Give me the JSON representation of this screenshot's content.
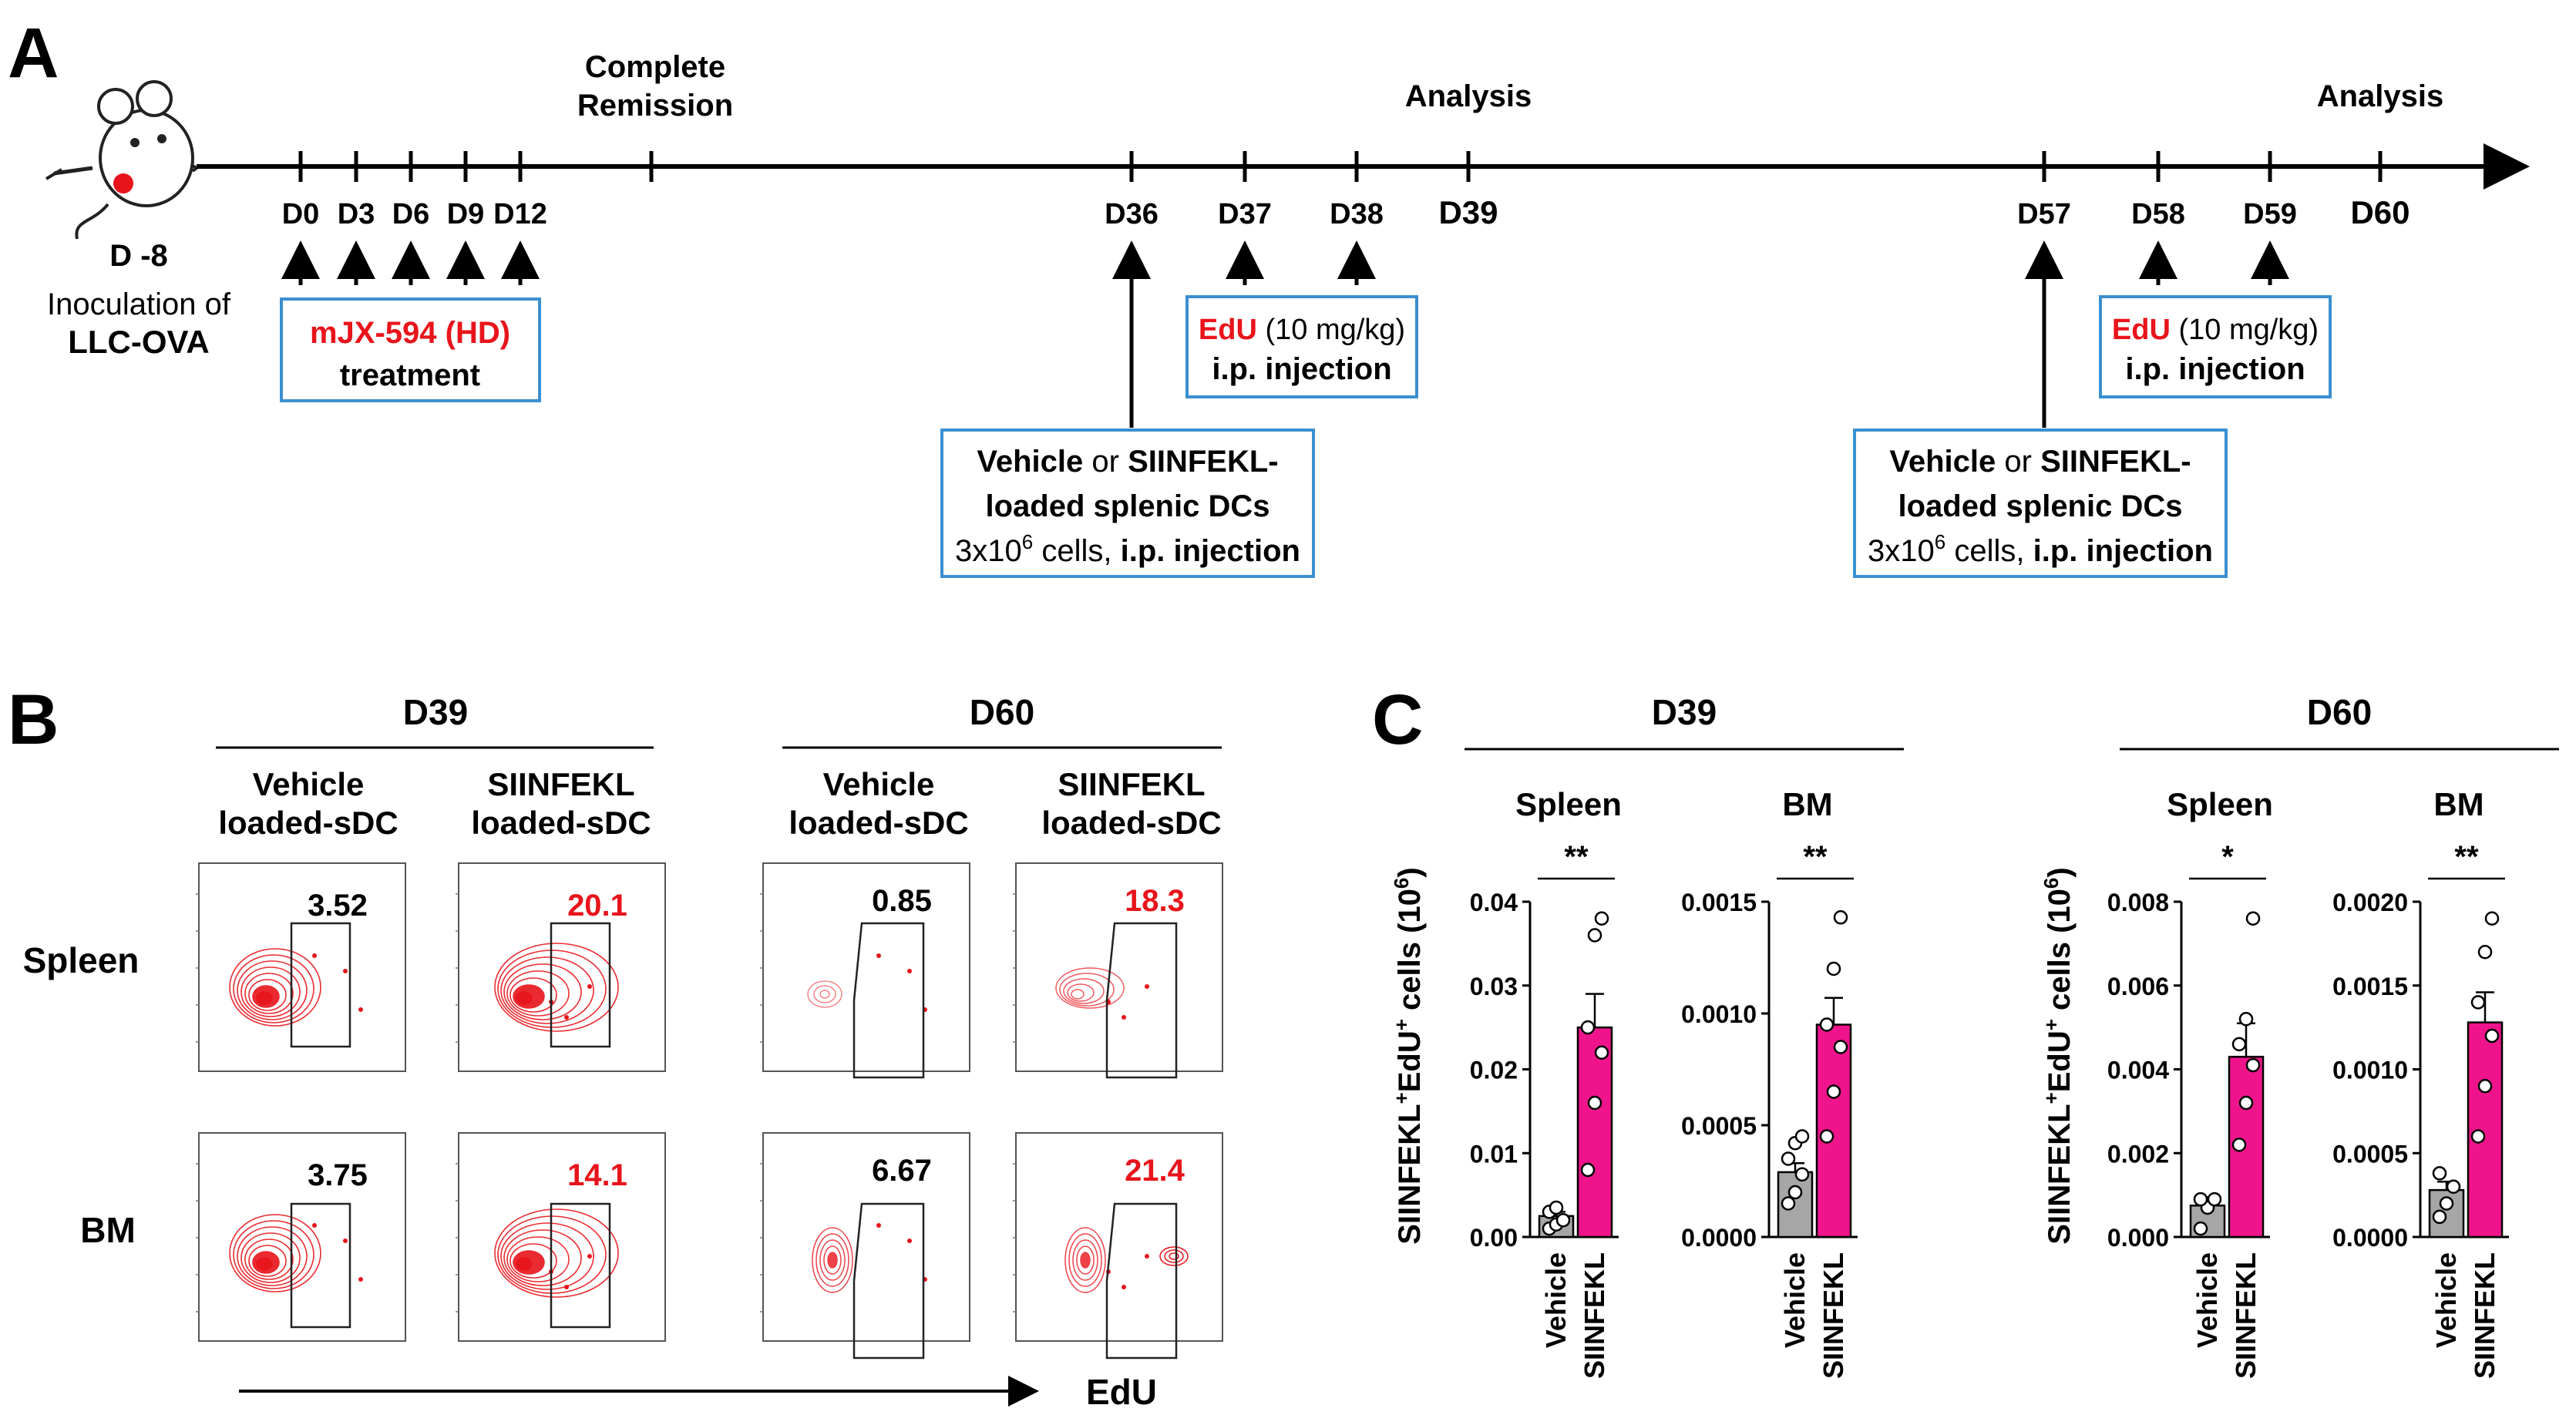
{
  "panel_labels": {
    "a": "A",
    "b": "B",
    "c": "C"
  },
  "timeline": {
    "day_minus8": "D -8",
    "inoculation_line1": "Inoculation of",
    "inoculation_line2": "LLC-OVA",
    "days": [
      "D0",
      "D3",
      "D6",
      "D9",
      "D12",
      "D36",
      "D37",
      "D38",
      "D39",
      "D57",
      "D58",
      "D59",
      "D60"
    ],
    "complete_remission_line1": "Complete",
    "complete_remission_line2": "Remission",
    "analysis_label": "Analysis",
    "treatment_box": {
      "drug": "mJX-594 (HD)",
      "line2": "treatment"
    },
    "edu_box": {
      "edu": "EdU",
      "dose": " (10 mg/kg)",
      "line2": "i.p. injection"
    },
    "dc_box": {
      "vehicle": "Vehicle",
      "or": " or ",
      "siinfekl": "SIINFEKL-",
      "line2": "loaded splenic DCs",
      "line3_cells": "3x10",
      "line3_exp": "6",
      "line3_mid": " cells, ",
      "line3_inj": "i.p. injection"
    }
  },
  "flow": {
    "timepoints": [
      "D39",
      "D60"
    ],
    "conditions": [
      [
        "Vehicle",
        "loaded-sDC"
      ],
      [
        "SIINFEKL",
        "loaded-sDC"
      ]
    ],
    "tissues": [
      "Spleen",
      "BM"
    ],
    "percentages": {
      "spleen": [
        "3.52",
        "20.1",
        "0.85",
        "18.3"
      ],
      "bm": [
        "3.75",
        "14.1",
        "6.67",
        "21.4"
      ]
    },
    "x_axis_label": "EdU",
    "colors": {
      "vehicle_pct": "#000000",
      "siinfekl_pct": "#e8141b",
      "contour": "#e8141b"
    }
  },
  "chart_data": [
    {
      "type": "bar",
      "timepoint": "D39",
      "title": "Spleen",
      "ylabel": "SIINFEKL+EdU+ cells (10^6)",
      "categories": [
        "Vehicle",
        "SIINFEKL"
      ],
      "values": [
        0.0025,
        0.025
      ],
      "sem": [
        0.0005,
        0.004
      ],
      "points": [
        [
          0.001,
          0.0015,
          0.002,
          0.003,
          0.0035
        ],
        [
          0.008,
          0.016,
          0.022,
          0.025,
          0.036,
          0.038
        ]
      ],
      "ylim": [
        0,
        0.04
      ],
      "ticks": [
        "0.00",
        "0.01",
        "0.02",
        "0.03",
        "0.04"
      ],
      "significance": "**"
    },
    {
      "type": "bar",
      "timepoint": "D39",
      "title": "BM",
      "categories": [
        "Vehicle",
        "SIINFEKL"
      ],
      "values": [
        0.00029,
        0.00095
      ],
      "sem": [
        4e-05,
        0.00012
      ],
      "points": [
        [
          0.00015,
          0.0002,
          0.00028,
          0.00035,
          0.00042,
          0.00045
        ],
        [
          0.00045,
          0.00065,
          0.00085,
          0.00095,
          0.0012,
          0.00143
        ]
      ],
      "ylim": [
        0,
        0.0015
      ],
      "ticks": [
        "0.0000",
        "0.0005",
        "0.0010",
        "0.0015"
      ],
      "significance": "**"
    },
    {
      "type": "bar",
      "timepoint": "D60",
      "title": "Spleen",
      "ylabel": "SIINFEKL+EdU+ cells (10^6)",
      "categories": [
        "Vehicle",
        "SIINFEKL"
      ],
      "values": [
        0.00075,
        0.0043
      ],
      "sem": [
        0.0002,
        0.0008
      ],
      "points": [
        [
          0.0002,
          0.0007,
          0.0009,
          0.0009
        ],
        [
          0.0022,
          0.0032,
          0.0041,
          0.0046,
          0.0052,
          0.0076
        ]
      ],
      "ylim": [
        0,
        0.008
      ],
      "ticks": [
        "0.000",
        "0.002",
        "0.004",
        "0.006",
        "0.008"
      ],
      "significance": "*"
    },
    {
      "type": "bar",
      "timepoint": "D60",
      "title": "BM",
      "categories": [
        "Vehicle",
        "SIINFEKL"
      ],
      "values": [
        0.00028,
        0.00128
      ],
      "sem": [
        5e-05,
        0.00018
      ],
      "points": [
        [
          0.00012,
          0.0002,
          0.0003,
          0.00038
        ],
        [
          0.0006,
          0.0009,
          0.0012,
          0.0014,
          0.0017,
          0.0019
        ]
      ],
      "ylim": [
        0,
        0.002
      ],
      "ticks": [
        "0.0000",
        "0.0005",
        "0.0010",
        "0.0015",
        "0.0020"
      ],
      "significance": "**"
    }
  ],
  "bar_chart_labels": {
    "ylabel_main": "SIINFEKL",
    "ylabel_sup1": "+",
    "ylabel_mid": "EdU",
    "ylabel_sup2": "+",
    "ylabel_tail": " cells (10",
    "ylabel_sup3": "6",
    "ylabel_close": ")",
    "category_vehicle": "Vehicle",
    "category_siinfekl": "SIINFEKL",
    "colors": {
      "vehicle": "#a6a6a6",
      "siinfekl": "#f0148c"
    }
  }
}
